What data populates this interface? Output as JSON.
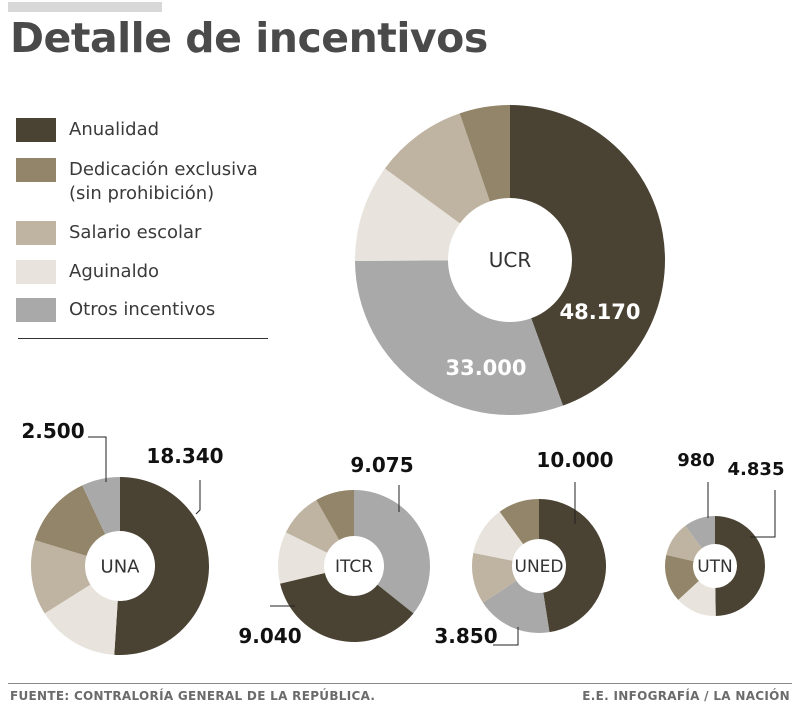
{
  "title": "Detalle de incentivos",
  "legend": [
    {
      "label": "Anualidad",
      "color": "#4a4232"
    },
    {
      "label": "Dedicación exclusiva",
      "label2": "(sin prohibición)",
      "color": "#938569"
    },
    {
      "label": "Salario escolar",
      "color": "#bfb3a1"
    },
    {
      "label": "Aguinaldo",
      "color": "#e8e4dd"
    },
    {
      "label": "Otros incentivos",
      "color": "#a9a9a9"
    }
  ],
  "chart_data": {
    "type": "pie",
    "variant": "donut",
    "title": "Detalle de incentivos",
    "categories": [
      "Anualidad",
      "Dedicación exclusiva (sin prohibición)",
      "Salario escolar",
      "Aguinaldo",
      "Otros incentivos"
    ],
    "series": [
      {
        "name": "UCR",
        "labeled": {
          "Anualidad": "48.170",
          "Otros incentivos": "33.000"
        },
        "values": {
          "Anualidad": 48170,
          "Otros incentivos": 33000,
          "Aguinaldo": 11000,
          "Salario escolar": 10500,
          "Dedicación exclusiva (sin prohibición)": 5700
        }
      },
      {
        "name": "UNA",
        "labeled": {
          "Anualidad": "18.340",
          "Otros incentivos": "2.500"
        },
        "values": {
          "Anualidad": 18340,
          "Aguinaldo": 5400,
          "Salario escolar": 4900,
          "Dedicación exclusiva (sin prohibición)": 4800,
          "Otros incentivos": 2500
        }
      },
      {
        "name": "ITCR",
        "labeled": {
          "Otros incentivos": "9.075",
          "Anualidad": "9.040"
        },
        "values": {
          "Otros incentivos": 9075,
          "Anualidad": 9040,
          "Aguinaldo": 2800,
          "Salario escolar": 2400,
          "Dedicación exclusiva (sin prohibición)": 2100
        }
      },
      {
        "name": "UNED",
        "labeled": {
          "Anualidad": "10.000",
          "Otros incentivos": "3.850"
        },
        "values": {
          "Anualidad": 10000,
          "Otros incentivos": 3850,
          "Salario escolar": 2600,
          "Aguinaldo": 2500,
          "Dedicación exclusiva (sin prohibición)": 2100
        }
      },
      {
        "name": "UTN",
        "labeled": {
          "Anualidad": "4.835",
          "Otros incentivos": "980"
        },
        "values": {
          "Anualidad": 4835,
          "Aguinaldo": 1300,
          "Dedicación exclusiva (sin prohibición)": 1500,
          "Salario escolar": 1100,
          "Otros incentivos": 980
        }
      }
    ]
  },
  "footer": {
    "source": "FUENTE: CONTRALORÍA GENERAL DE LA REPÚBLICA.",
    "credit": "E.E. INFOGRAFÍA / LA NACIÓN"
  }
}
